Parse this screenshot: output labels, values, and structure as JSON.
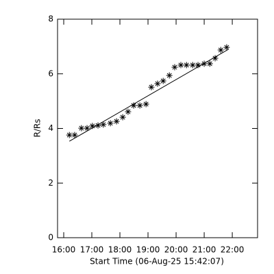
{
  "chart_data": {
    "type": "scatter",
    "xlabel": "Start Time (06-Aug-25 15:42:07)",
    "ylabel": "R/Rs",
    "xlim": [
      15.78,
      22.9
    ],
    "xticks": [
      {
        "value": 16,
        "label": "16:00"
      },
      {
        "value": 17,
        "label": "17:00"
      },
      {
        "value": 18,
        "label": "18:00"
      },
      {
        "value": 19,
        "label": "19:00"
      },
      {
        "value": 20,
        "label": "20:00"
      },
      {
        "value": 21,
        "label": "21:00"
      },
      {
        "value": 22,
        "label": "22:00"
      }
    ],
    "ylim": [
      0,
      8
    ],
    "yticks": [
      0,
      2,
      4,
      6,
      8
    ],
    "series": [
      {
        "color": "#000000",
        "marker": "asterisk",
        "x": [
          16.2,
          16.39,
          16.63,
          16.83,
          17.02,
          17.22,
          17.41,
          17.66,
          17.88,
          18.1,
          18.29,
          18.49,
          18.71,
          18.93,
          19.12,
          19.34,
          19.54,
          19.76,
          19.95,
          20.17,
          20.37,
          20.59,
          20.78,
          21.0,
          21.2,
          21.39,
          21.59,
          21.8
        ],
        "values": [
          3.76,
          3.76,
          4.01,
          4.01,
          4.09,
          4.11,
          4.14,
          4.19,
          4.26,
          4.41,
          4.61,
          4.84,
          4.84,
          4.89,
          5.51,
          5.64,
          5.74,
          5.94,
          6.24,
          6.32,
          6.32,
          6.32,
          6.32,
          6.37,
          6.37,
          6.57,
          6.87,
          6.97
        ]
      },
      {
        "color": "#000000",
        "marker": "line",
        "x": [
          16.2,
          21.85
        ],
        "values": [
          3.53,
          6.89
        ]
      }
    ]
  }
}
